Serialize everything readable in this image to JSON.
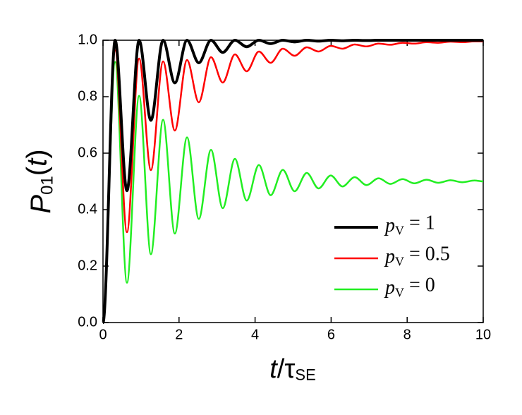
{
  "chart_data": {
    "type": "line",
    "x_label": "t/τSE",
    "y_label": "P01(t)",
    "x": [
      0,
      0.32,
      0.63,
      0.95,
      1.26,
      1.58,
      1.89,
      2.21,
      2.52,
      2.84,
      3.15,
      3.47,
      3.78,
      4.1,
      4.41,
      4.73,
      5.04,
      5.36,
      5.67,
      5.99,
      6.3,
      6.62,
      6.93,
      7.25,
      7.56,
      7.88,
      8.19,
      8.51,
      8.82,
      9.14,
      9.45,
      9.77,
      10
    ],
    "series": [
      {
        "name": "pV = 1",
        "color": "#000000",
        "width": 4,
        "values": [
          0,
          1,
          0.467,
          1,
          0.716,
          1,
          0.849,
          1,
          0.92,
          1,
          0.957,
          1,
          0.977,
          1,
          0.988,
          1,
          0.994,
          1,
          0.997,
          1,
          0.998,
          1,
          0.999,
          1,
          1,
          1,
          1,
          1,
          1,
          1,
          1,
          1,
          1
        ]
      },
      {
        "name": "pV = 0.5",
        "color": "#ff0000",
        "width": 2.5,
        "values": [
          0,
          0.965,
          0.32,
          0.935,
          0.54,
          0.925,
          0.68,
          0.93,
          0.78,
          0.94,
          0.85,
          0.95,
          0.89,
          0.96,
          0.92,
          0.97,
          0.945,
          0.975,
          0.96,
          0.98,
          0.97,
          0.985,
          0.978,
          0.988,
          0.984,
          0.991,
          0.988,
          0.993,
          0.991,
          0.995,
          0.993,
          0.996,
          0.996
        ]
      },
      {
        "name": "pV = 0",
        "color": "#22ee22",
        "width": 2.5,
        "values": [
          0,
          0.923,
          0.141,
          0.803,
          0.242,
          0.718,
          0.315,
          0.656,
          0.367,
          0.612,
          0.405,
          0.58,
          0.432,
          0.558,
          0.451,
          0.541,
          0.465,
          0.53,
          0.475,
          0.521,
          0.482,
          0.515,
          0.487,
          0.511,
          0.491,
          0.508,
          0.493,
          0.506,
          0.495,
          0.504,
          0.497,
          0.503,
          0.5
        ]
      }
    ],
    "xlim": [
      0,
      10
    ],
    "ylim": [
      0,
      1
    ],
    "xticks": [
      0,
      2,
      4,
      6,
      8,
      10
    ],
    "yticks": [
      {
        "value": 0,
        "label": "0.0"
      },
      0.2,
      0.4,
      0.6,
      0.8,
      {
        "value": 1,
        "label": "1.0"
      }
    ],
    "grid": false,
    "legend": "lower right"
  }
}
